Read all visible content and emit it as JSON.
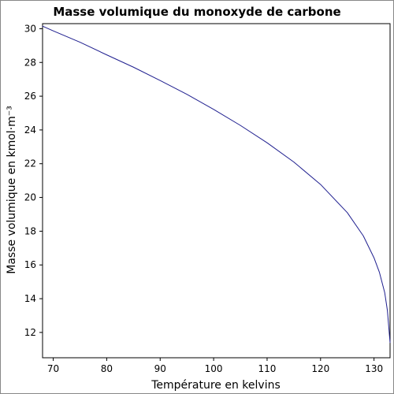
{
  "chart_data": {
    "type": "line",
    "title": "Masse volumique du monoxyde de carbone",
    "xlabel": "Température en kelvins",
    "ylabel": "Masse volumique en kmol·m⁻³",
    "xlim": [
      68,
      133
    ],
    "ylim": [
      10.5,
      30.3
    ],
    "xticks": [
      70,
      80,
      90,
      100,
      110,
      120,
      130
    ],
    "yticks": [
      12,
      14,
      16,
      18,
      20,
      22,
      24,
      26,
      28,
      30
    ],
    "grid": false,
    "colors": {
      "line": "#1f1f8f",
      "axes": "#000000"
    },
    "series": [
      {
        "x": [
          68,
          70,
          75,
          80,
          85,
          90,
          95,
          100,
          105,
          110,
          115,
          120,
          125,
          128,
          130,
          131,
          132,
          132.5,
          133
        ],
        "values": [
          30.15,
          29.87,
          29.2,
          28.45,
          27.72,
          26.93,
          26.11,
          25.22,
          24.27,
          23.24,
          22.1,
          20.77,
          19.1,
          17.72,
          16.42,
          15.57,
          14.36,
          13.3,
          11.4
        ]
      }
    ]
  }
}
